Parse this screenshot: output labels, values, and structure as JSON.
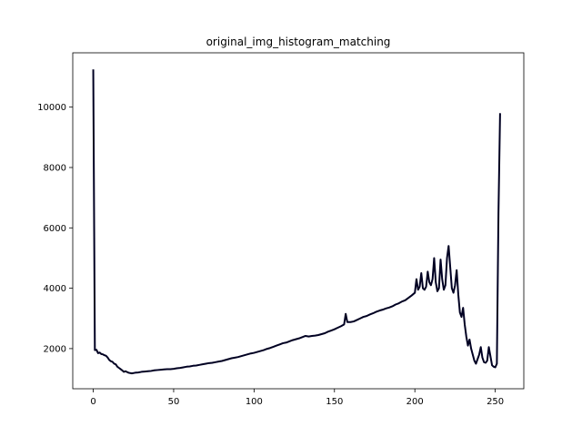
{
  "chart_data": {
    "type": "line",
    "title": "original_img_histogram_matching",
    "xlabel": "",
    "ylabel": "",
    "xlim": [
      -12.75,
      267.75
    ],
    "ylim": [
      670,
      11800
    ],
    "x_ticks": [
      0,
      50,
      100,
      150,
      200,
      250
    ],
    "y_ticks": [
      2000,
      4000,
      6000,
      8000,
      10000
    ],
    "grid": false,
    "legend": "none",
    "line_color": "#000022",
    "series": [
      {
        "points": [
          [
            0,
            11250
          ],
          [
            1,
            1950
          ],
          [
            2,
            1960
          ],
          [
            3,
            1850
          ],
          [
            4,
            1870
          ],
          [
            5,
            1820
          ],
          [
            6,
            1810
          ],
          [
            7,
            1780
          ],
          [
            8,
            1760
          ],
          [
            9,
            1700
          ],
          [
            10,
            1620
          ],
          [
            11,
            1580
          ],
          [
            12,
            1560
          ],
          [
            13,
            1500
          ],
          [
            14,
            1480
          ],
          [
            15,
            1400
          ],
          [
            16,
            1360
          ],
          [
            17,
            1320
          ],
          [
            18,
            1280
          ],
          [
            19,
            1230
          ],
          [
            20,
            1250
          ],
          [
            22,
            1200
          ],
          [
            24,
            1180
          ],
          [
            26,
            1200
          ],
          [
            28,
            1210
          ],
          [
            30,
            1230
          ],
          [
            32,
            1240
          ],
          [
            34,
            1250
          ],
          [
            36,
            1260
          ],
          [
            38,
            1280
          ],
          [
            40,
            1290
          ],
          [
            42,
            1300
          ],
          [
            44,
            1310
          ],
          [
            46,
            1320
          ],
          [
            48,
            1320
          ],
          [
            50,
            1330
          ],
          [
            52,
            1350
          ],
          [
            54,
            1360
          ],
          [
            56,
            1380
          ],
          [
            58,
            1400
          ],
          [
            60,
            1410
          ],
          [
            62,
            1430
          ],
          [
            64,
            1440
          ],
          [
            66,
            1460
          ],
          [
            68,
            1480
          ],
          [
            70,
            1500
          ],
          [
            72,
            1520
          ],
          [
            74,
            1530
          ],
          [
            76,
            1550
          ],
          [
            78,
            1570
          ],
          [
            80,
            1590
          ],
          [
            82,
            1620
          ],
          [
            84,
            1650
          ],
          [
            86,
            1680
          ],
          [
            88,
            1700
          ],
          [
            90,
            1720
          ],
          [
            92,
            1750
          ],
          [
            94,
            1780
          ],
          [
            96,
            1810
          ],
          [
            98,
            1840
          ],
          [
            100,
            1860
          ],
          [
            102,
            1890
          ],
          [
            104,
            1920
          ],
          [
            106,
            1950
          ],
          [
            108,
            1990
          ],
          [
            110,
            2020
          ],
          [
            112,
            2060
          ],
          [
            114,
            2100
          ],
          [
            116,
            2140
          ],
          [
            118,
            2180
          ],
          [
            120,
            2200
          ],
          [
            122,
            2240
          ],
          [
            124,
            2280
          ],
          [
            126,
            2310
          ],
          [
            128,
            2340
          ],
          [
            130,
            2380
          ],
          [
            132,
            2420
          ],
          [
            134,
            2400
          ],
          [
            136,
            2420
          ],
          [
            138,
            2430
          ],
          [
            140,
            2450
          ],
          [
            142,
            2480
          ],
          [
            144,
            2510
          ],
          [
            146,
            2560
          ],
          [
            148,
            2600
          ],
          [
            150,
            2640
          ],
          [
            152,
            2690
          ],
          [
            154,
            2740
          ],
          [
            156,
            2800
          ],
          [
            157,
            3150
          ],
          [
            158,
            2880
          ],
          [
            160,
            2880
          ],
          [
            162,
            2900
          ],
          [
            164,
            2950
          ],
          [
            166,
            3000
          ],
          [
            168,
            3050
          ],
          [
            170,
            3080
          ],
          [
            172,
            3130
          ],
          [
            174,
            3170
          ],
          [
            176,
            3220
          ],
          [
            178,
            3260
          ],
          [
            180,
            3290
          ],
          [
            182,
            3330
          ],
          [
            184,
            3360
          ],
          [
            186,
            3400
          ],
          [
            188,
            3460
          ],
          [
            190,
            3500
          ],
          [
            192,
            3560
          ],
          [
            194,
            3600
          ],
          [
            196,
            3680
          ],
          [
            198,
            3760
          ],
          [
            200,
            3850
          ],
          [
            201,
            4300
          ],
          [
            202,
            3950
          ],
          [
            203,
            4050
          ],
          [
            204,
            4500
          ],
          [
            205,
            4000
          ],
          [
            206,
            3950
          ],
          [
            207,
            4050
          ],
          [
            208,
            4550
          ],
          [
            209,
            4200
          ],
          [
            210,
            4100
          ],
          [
            211,
            4300
          ],
          [
            212,
            5000
          ],
          [
            213,
            4200
          ],
          [
            214,
            3900
          ],
          [
            215,
            4000
          ],
          [
            216,
            4950
          ],
          [
            217,
            4300
          ],
          [
            218,
            3950
          ],
          [
            219,
            4100
          ],
          [
            220,
            5000
          ],
          [
            221,
            5400
          ],
          [
            222,
            4700
          ],
          [
            223,
            4000
          ],
          [
            224,
            3850
          ],
          [
            225,
            4100
          ],
          [
            226,
            4600
          ],
          [
            227,
            3800
          ],
          [
            228,
            3200
          ],
          [
            229,
            3050
          ],
          [
            230,
            3350
          ],
          [
            231,
            2800
          ],
          [
            232,
            2400
          ],
          [
            233,
            2100
          ],
          [
            234,
            2300
          ],
          [
            235,
            2000
          ],
          [
            236,
            1800
          ],
          [
            237,
            1600
          ],
          [
            238,
            1500
          ],
          [
            239,
            1650
          ],
          [
            240,
            1800
          ],
          [
            241,
            2050
          ],
          [
            242,
            1700
          ],
          [
            243,
            1550
          ],
          [
            244,
            1530
          ],
          [
            245,
            1600
          ],
          [
            246,
            2050
          ],
          [
            247,
            1750
          ],
          [
            248,
            1450
          ],
          [
            249,
            1400
          ],
          [
            250,
            1380
          ],
          [
            251,
            1500
          ],
          [
            252,
            6500
          ],
          [
            253,
            9800
          ]
        ]
      }
    ]
  }
}
